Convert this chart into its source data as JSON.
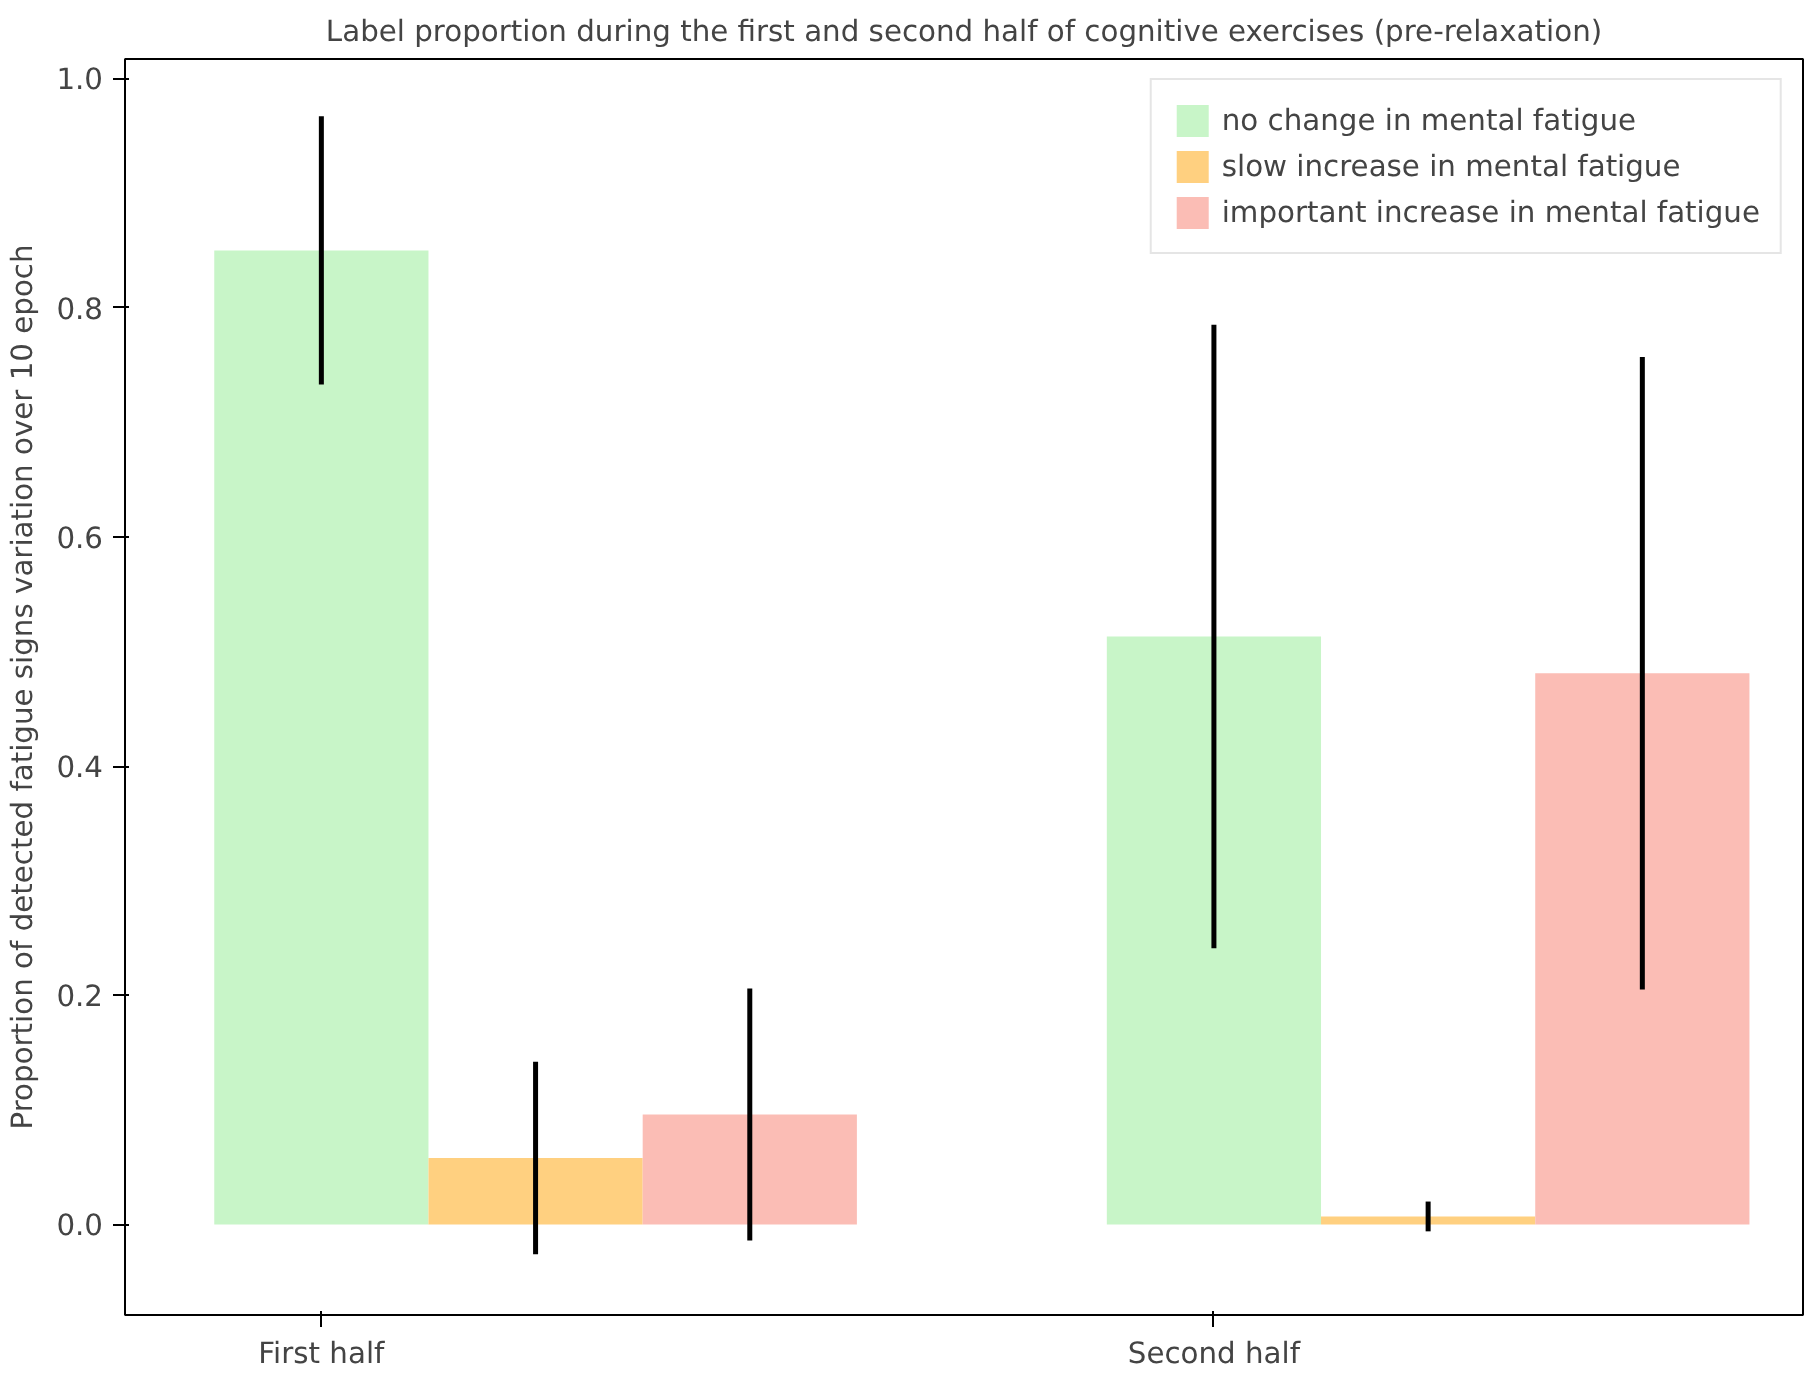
{
  "chart_data": {
    "type": "bar",
    "title": "Label proportion during the first and second half of cognitive exercises (pre-relaxation)",
    "ylabel": "Proportion of detected fatigue signs variation over 10 epoch",
    "categories": [
      "First half",
      "Second half"
    ],
    "series": [
      {
        "name": "no change in mental fatigue",
        "color": "#c8f5c8",
        "values": [
          0.85,
          0.513
        ],
        "errors": [
          0.117,
          0.272
        ]
      },
      {
        "name": "slow increase in mental fatigue",
        "color": "#ffd080",
        "values": [
          0.058,
          0.007
        ],
        "errors": [
          0.084,
          0.013
        ]
      },
      {
        "name": "important increase in mental fatigue",
        "color": "#fbbdb5",
        "values": [
          0.096,
          0.481
        ],
        "errors": [
          0.11,
          0.276
        ]
      }
    ],
    "ylim": [
      -0.079,
      1.017
    ],
    "yticks": [
      {
        "value": 0,
        "label": "0.0"
      },
      0.2,
      0.4,
      0.6,
      0.8,
      {
        "value": 1,
        "label": "1.0"
      }
    ],
    "grid": false,
    "legend": "top right"
  }
}
